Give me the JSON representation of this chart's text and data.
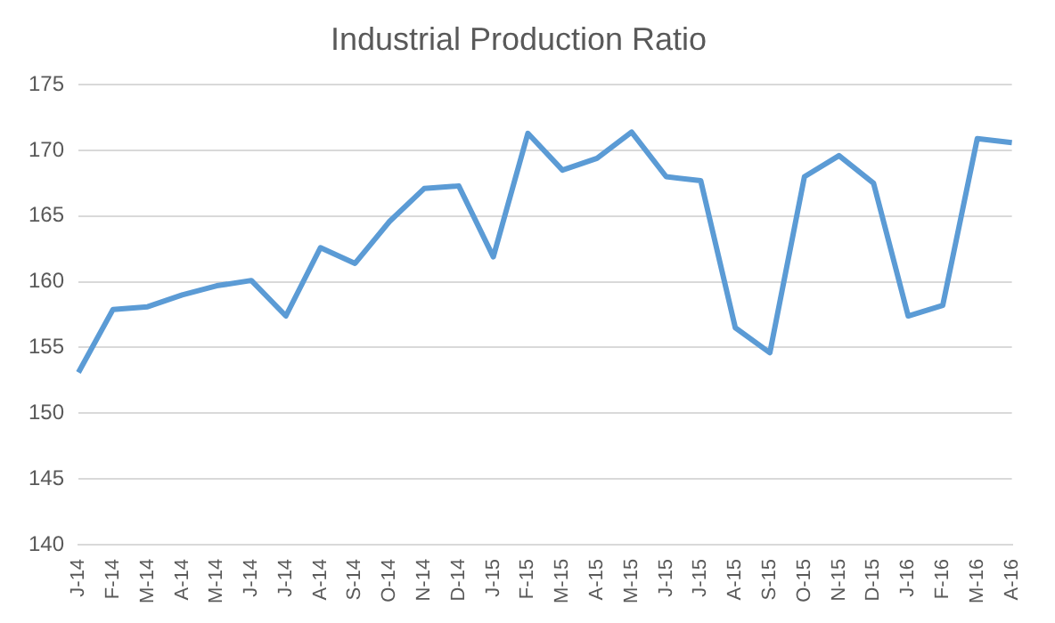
{
  "chart_data": {
    "type": "line",
    "title": "Industrial Production Ratio",
    "categories": [
      "J-14",
      "F-14",
      "M-14",
      "A-14",
      "M-14",
      "J-14",
      "J-14",
      "A-14",
      "S-14",
      "O-14",
      "N-14",
      "D-14",
      "J-15",
      "F-15",
      "M-15",
      "A-15",
      "M-15",
      "J-15",
      "J-15",
      "A-15",
      "S-15",
      "O-15",
      "N-15",
      "D-15",
      "J-16",
      "F-16",
      "M-16",
      "A-16"
    ],
    "series": [
      {
        "color": "#5b9bd5",
        "values": [
          153.1,
          157.9,
          158.1,
          159.0,
          159.7,
          160.1,
          157.4,
          162.6,
          161.4,
          164.6,
          167.1,
          167.3,
          161.9,
          171.3,
          168.5,
          169.4,
          171.4,
          168.0,
          167.7,
          156.5,
          154.6,
          168.0,
          169.6,
          167.5,
          157.4,
          158.2,
          170.9,
          170.6
        ]
      }
    ],
    "ylim": [
      140,
      175
    ],
    "yticks": [
      140,
      145,
      150,
      155,
      160,
      165,
      170,
      175
    ],
    "grid": "y",
    "legend": false,
    "marker": "none",
    "line_style": "solid"
  }
}
